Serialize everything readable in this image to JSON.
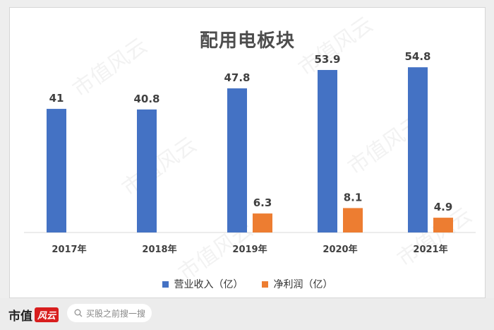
{
  "chart_data": {
    "type": "bar",
    "title": "配用电板块",
    "categories": [
      "2017年",
      "2018年",
      "2019年",
      "2020年",
      "2021年"
    ],
    "series": [
      {
        "name": "营业收入（亿）",
        "color": "#4472c4",
        "values": [
          41,
          40.8,
          47.8,
          53.9,
          54.8
        ],
        "labels": [
          "41",
          "40.8",
          "47.8",
          "53.9",
          "54.8"
        ]
      },
      {
        "name": "净利润（亿）",
        "color": "#ed7d31",
        "values": [
          null,
          null,
          6.3,
          8.1,
          4.9
        ],
        "labels": [
          "",
          "",
          "6.3",
          "8.1",
          "4.9"
        ]
      }
    ],
    "ylim": [
      0,
      60
    ],
    "grid": false,
    "legend": "bottom"
  },
  "watermark_text": "市值风云",
  "footer": {
    "brand_text": "市值",
    "brand_badge": "风云",
    "search_text": "买股之前搜一搜"
  }
}
